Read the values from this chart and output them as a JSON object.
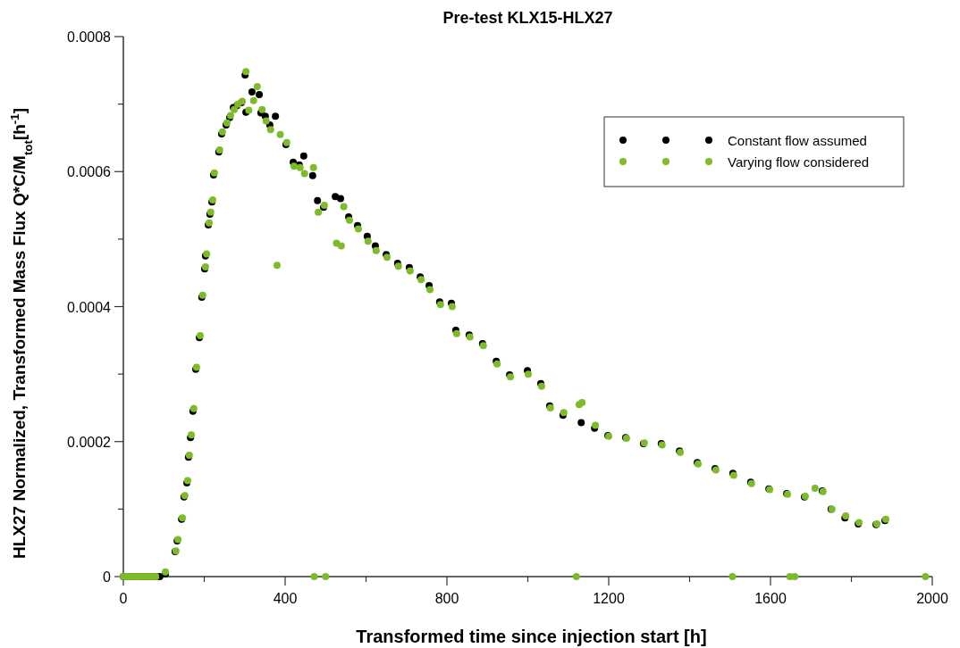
{
  "chart_data": {
    "type": "scatter",
    "title": "Pre-test KLX15-HLX27",
    "xlabel": "Transformed time since injection start [h]",
    "ylabel": "HLX27 Normalized, Transformed Mass Flux   Q*C/M$_{tot}$[h$^{-1}$]",
    "xlim": [
      0,
      2000
    ],
    "ylim": [
      0,
      0.0008
    ],
    "xticks": [
      0,
      {
        "value": 200,
        "label": null
      },
      400,
      {
        "value": 600,
        "label": null
      },
      800,
      {
        "value": 1000,
        "label": null
      },
      1200,
      {
        "value": 1400,
        "label": null
      },
      1600,
      {
        "value": 1800,
        "label": null
      },
      2000
    ],
    "yticks": [
      0,
      {
        "value": 0.0001,
        "label": null
      },
      0.0002,
      {
        "value": 0.0003,
        "label": null
      },
      0.0004,
      {
        "value": 0.0005,
        "label": null
      },
      0.0006,
      {
        "value": 0.0007,
        "label": null
      },
      0.0008
    ],
    "grid": false,
    "legend": "top right",
    "marker": "circle",
    "series": [
      {
        "name": "Constant flow assumed",
        "color": "#000000",
        "x": [
          0,
          10,
          20,
          30,
          40,
          50,
          60,
          70,
          80,
          90,
          104,
          128,
          133,
          144,
          150,
          157,
          161,
          166,
          172,
          179,
          188,
          194,
          201,
          203,
          210,
          214,
          219,
          223,
          236,
          243,
          254,
          263,
          272,
          281,
          292,
          301,
          303,
          318,
          336,
          340,
          351,
          362,
          376,
          402,
          420,
          435,
          446,
          468,
          480,
          495,
          524,
          537,
          557,
          579,
          603,
          623,
          650,
          678,
          707,
          734,
          756,
          782,
          811,
          822,
          855,
          888,
          922,
          955,
          999,
          1032,
          1054,
          1087,
          1132,
          1165,
          1198,
          1242,
          1286,
          1330,
          1375,
          1419,
          1463,
          1507,
          1551,
          1596,
          1640,
          1684,
          1728,
          1750,
          1784,
          1817,
          1861,
          1883
        ],
        "values": [
          0,
          0,
          0,
          0,
          0,
          0,
          0,
          0,
          0,
          0,
          4e-06,
          3.7e-05,
          5.3e-05,
          8.5e-05,
          0.000118,
          0.000139,
          0.000177,
          0.000206,
          0.000245,
          0.000307,
          0.000354,
          0.000414,
          0.000456,
          0.000475,
          0.000521,
          0.000537,
          0.000555,
          0.000595,
          0.000629,
          0.000656,
          0.000669,
          0.00068,
          0.000695,
          0.000698,
          0.000702,
          0.000743,
          0.000688,
          0.000718,
          0.000714,
          0.000687,
          0.000682,
          0.000669,
          0.000682,
          0.00064,
          0.000614,
          0.00061,
          0.000623,
          0.000594,
          0.000557,
          0.000547,
          0.000563,
          0.00056,
          0.000533,
          0.00052,
          0.000504,
          0.00049,
          0.000477,
          0.000464,
          0.000458,
          0.000444,
          0.000431,
          0.000407,
          0.000405,
          0.000365,
          0.000358,
          0.000345,
          0.000319,
          0.000299,
          0.000305,
          0.000286,
          0.000253,
          0.000239,
          0.000228,
          0.00022,
          0.000209,
          0.000206,
          0.000197,
          0.000197,
          0.000186,
          0.000169,
          0.00016,
          0.000153,
          0.00014,
          0.00013,
          0.000123,
          0.000118,
          0.000127,
          0.0001,
          8.7e-05,
          7.8e-05,
          7.7e-05,
          8.3e-05
        ]
      },
      {
        "name": "Varying flow considered",
        "color": "#7dbb2a",
        "x": [
          0,
          8,
          16,
          24,
          32,
          40,
          50,
          60,
          70,
          80,
          104,
          130,
          135,
          146,
          152,
          159,
          163,
          168,
          174,
          181,
          190,
          196,
          203,
          206,
          212,
          216,
          221,
          225,
          238,
          245,
          256,
          265,
          274,
          283,
          294,
          303,
          310,
          322,
          331,
          343,
          353,
          364,
          380,
          388,
          404,
          422,
          437,
          448,
          470,
          472,
          482,
          497,
          500,
          527,
          539,
          545,
          559,
          581,
          605,
          625,
          652,
          680,
          709,
          736,
          758,
          784,
          813,
          824,
          857,
          890,
          924,
          957,
          1001,
          1034,
          1056,
          1089,
          1120,
          1127,
          1134,
          1167,
          1200,
          1244,
          1288,
          1332,
          1377,
          1421,
          1465,
          1506,
          1509,
          1553,
          1598,
          1642,
          1648,
          1660,
          1686,
          1710,
          1730,
          1752,
          1786,
          1819,
          1863,
          1885,
          1983
        ],
        "values": [
          0,
          0,
          0,
          0,
          0,
          0,
          0,
          0,
          0,
          0,
          7e-06,
          3.8e-05,
          5.5e-05,
          8.7e-05,
          0.00012,
          0.000142,
          0.00018,
          0.00021,
          0.000249,
          0.00031,
          0.000357,
          0.000417,
          0.000459,
          0.000478,
          0.000524,
          0.00054,
          0.000558,
          0.000598,
          0.000632,
          0.000659,
          0.000672,
          0.000683,
          0.000692,
          0.0007,
          0.000704,
          0.000748,
          0.000691,
          0.000705,
          0.000726,
          0.000692,
          0.000675,
          0.000662,
          0.000461,
          0.000655,
          0.000643,
          0.000608,
          0.000606,
          0.000597,
          0.000606,
          0,
          0.00054,
          0.00055,
          0,
          0.000494,
          0.00049,
          0.000548,
          0.000528,
          0.000515,
          0.000497,
          0.000483,
          0.000473,
          0.00046,
          0.000453,
          0.00044,
          0.000425,
          0.000403,
          0.0004,
          0.00036,
          0.000355,
          0.000342,
          0.000315,
          0.000296,
          0.0003,
          0.000282,
          0.00025,
          0.000243,
          0,
          0.000255,
          0.000258,
          0.000224,
          0.000208,
          0.000205,
          0.000198,
          0.000195,
          0.000184,
          0.000167,
          0.000158,
          0,
          0.00015,
          0.000138,
          0.000129,
          0.000122,
          0,
          0,
          0.000119,
          0.000131,
          0.000126,
          0.0001,
          9e-05,
          8e-05,
          7.8e-05,
          8.5e-05,
          0
        ]
      }
    ]
  }
}
